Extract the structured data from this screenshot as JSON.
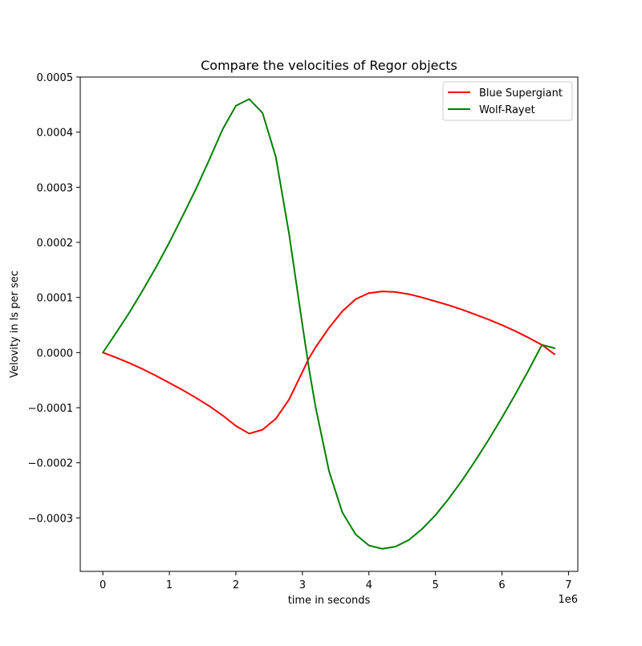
{
  "chart_data": {
    "type": "line",
    "title": "Compare the velocities of Regor objects",
    "xlabel": "time in seconds",
    "ylabel": "Velovity in ls per sec",
    "x_offset_text": "1e6",
    "xlim": [
      -340000,
      7140000
    ],
    "ylim": [
      -0.000397,
      0.0005
    ],
    "xticks": [
      0,
      1,
      2,
      3,
      4,
      5,
      6,
      7
    ],
    "x_tick_labels": [
      "0",
      "1",
      "2",
      "3",
      "4",
      "5",
      "6",
      "7"
    ],
    "x_tick_scale": 1000000,
    "yticks": [
      -0.0003,
      -0.0002,
      -0.0001,
      0.0,
      0.0001,
      0.0002,
      0.0003,
      0.0004,
      0.0005
    ],
    "y_tick_labels": [
      "−0.0003",
      "−0.0002",
      "−0.0001",
      "0.0000",
      "0.0001",
      "0.0002",
      "0.0003",
      "0.0004",
      "0.0005"
    ],
    "grid": false,
    "legend_position": "upper right",
    "x": [
      0,
      200000,
      400000,
      600000,
      800000,
      1000000,
      1200000,
      1400000,
      1600000,
      1800000,
      2000000,
      2200000,
      2400000,
      2600000,
      2800000,
      3000000,
      3100000,
      3200000,
      3400000,
      3600000,
      3800000,
      4000000,
      4200000,
      4400000,
      4600000,
      4800000,
      5000000,
      5200000,
      5400000,
      5600000,
      5800000,
      6000000,
      6200000,
      6400000,
      6600000,
      6790000
    ],
    "series": [
      {
        "name": "Blue Supergiant",
        "color": "#ff0000",
        "values": [
          0.0,
          -9e-06,
          -1.9e-05,
          -3e-05,
          -4.2e-05,
          -5.5e-05,
          -6.8e-05,
          -8.2e-05,
          -9.7e-05,
          -0.000114,
          -0.000133,
          -0.000147,
          -0.00014,
          -0.00012,
          -8.5e-05,
          -3.5e-05,
          -1e-05,
          1e-05,
          4.5e-05,
          7.5e-05,
          9.7e-05,
          0.000108,
          0.000111,
          0.00011,
          0.000106,
          0.0001,
          9.3e-05,
          8.6e-05,
          7.8e-05,
          6.9e-05,
          6e-05,
          5e-05,
          3.9e-05,
          2.7e-05,
          1.4e-05,
          -3e-06
        ]
      },
      {
        "name": "Wolf-Rayet",
        "color": "#008000",
        "values": [
          0.0,
          3.6e-05,
          7.3e-05,
          0.000113,
          0.000155,
          0.0002,
          0.000248,
          0.000297,
          0.00035,
          0.000405,
          0.000448,
          0.00046,
          0.000435,
          0.000355,
          0.000215,
          5e-05,
          -3e-05,
          -0.0001,
          -0.000215,
          -0.00029,
          -0.00033,
          -0.00035,
          -0.000356,
          -0.000352,
          -0.00034,
          -0.00032,
          -0.000295,
          -0.000265,
          -0.000232,
          -0.000196,
          -0.000158,
          -0.000118,
          -7.6e-05,
          -3.2e-05,
          1.4e-05,
          8e-06
        ]
      }
    ]
  }
}
